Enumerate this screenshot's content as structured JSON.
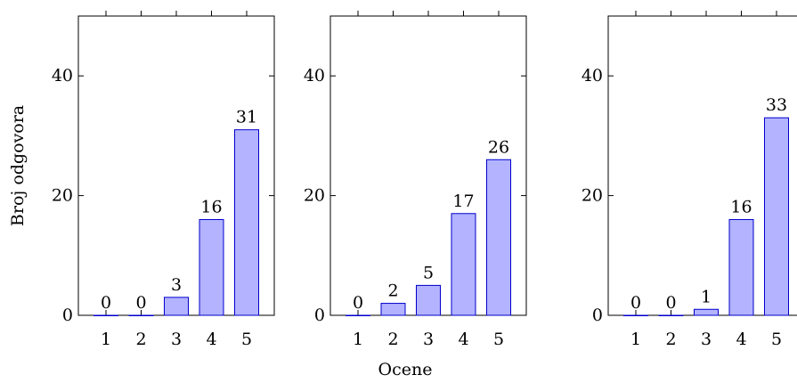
{
  "figure": {
    "ylabel": "Broj odgovora",
    "xlabel": "Ocene"
  },
  "chart_data": [
    {
      "type": "bar",
      "categories": [
        "1",
        "2",
        "3",
        "4",
        "5"
      ],
      "values": [
        0,
        0,
        3,
        16,
        31
      ],
      "ylim": [
        0,
        50
      ],
      "yticks": [
        0,
        20,
        40
      ],
      "title": "",
      "xlabel": "",
      "ylabel": "Broj odgovora",
      "colors": {
        "fill": "#b3b3ff",
        "stroke": "#0000cc"
      }
    },
    {
      "type": "bar",
      "categories": [
        "1",
        "2",
        "3",
        "4",
        "5"
      ],
      "values": [
        0,
        2,
        5,
        17,
        26
      ],
      "ylim": [
        0,
        50
      ],
      "yticks": [
        0,
        20,
        40
      ],
      "title": "",
      "xlabel": "Ocene",
      "ylabel": "",
      "colors": {
        "fill": "#b3b3ff",
        "stroke": "#0000cc"
      }
    },
    {
      "type": "bar",
      "categories": [
        "1",
        "2",
        "3",
        "4",
        "5"
      ],
      "values": [
        0,
        0,
        1,
        16,
        33
      ],
      "ylim": [
        0,
        50
      ],
      "yticks": [
        0,
        20,
        40
      ],
      "title": "",
      "xlabel": "",
      "ylabel": "",
      "colors": {
        "fill": "#b3b3ff",
        "stroke": "#0000cc"
      }
    }
  ]
}
